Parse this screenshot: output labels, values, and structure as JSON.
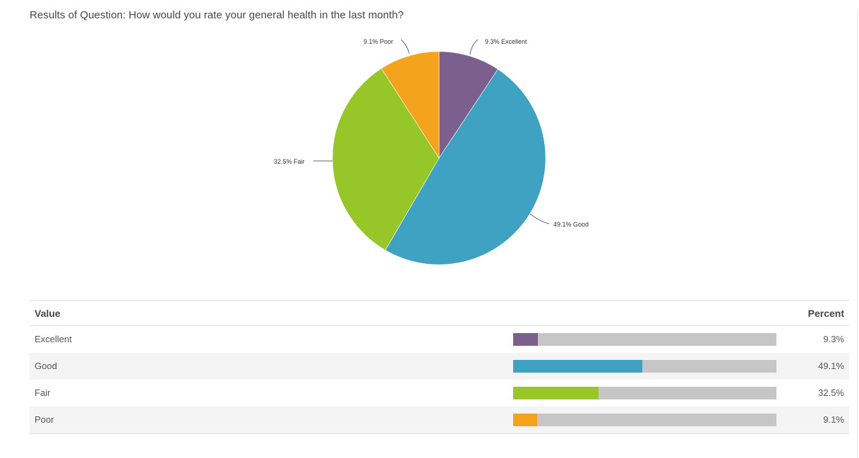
{
  "title": "Results of Question: How would you rate your general health in the last month?",
  "table": {
    "headers": {
      "value": "Value",
      "percent": "Percent"
    },
    "rows": [
      {
        "label": "Excellent",
        "percent": "9.3%",
        "value": 9.3,
        "color": "#7b5f8c"
      },
      {
        "label": "Good",
        "percent": "49.1%",
        "value": 49.1,
        "color": "#3fa2c2"
      },
      {
        "label": "Fair",
        "percent": "32.5%",
        "value": 32.5,
        "color": "#96c627"
      },
      {
        "label": "Poor",
        "percent": "9.1%",
        "value": 9.1,
        "color": "#f4a41c"
      }
    ]
  },
  "pie_labels": {
    "excellent": "9.3% Excellent",
    "good": "49.1% Good",
    "fair": "32.5% Fair",
    "poor": "9.1% Poor"
  },
  "chart_data": [
    {
      "type": "pie",
      "title": "Results of Question: How would you rate your general health in the last month?",
      "categories": [
        "Excellent",
        "Good",
        "Fair",
        "Poor"
      ],
      "values": [
        9.3,
        49.1,
        32.5,
        9.1
      ],
      "colors": [
        "#7b5f8c",
        "#3fa2c2",
        "#96c627",
        "#f4a41c"
      ],
      "labels": [
        "9.3% Excellent",
        "49.1% Good",
        "32.5% Fair",
        "9.1% Poor"
      ],
      "start_angle": "12 o'clock, clockwise",
      "legend": "none (callout labels)"
    },
    {
      "type": "table",
      "columns": [
        "Value",
        "Percent"
      ],
      "rows": [
        [
          "Excellent",
          "9.3%"
        ],
        [
          "Good",
          "49.1%"
        ],
        [
          "Fair",
          "32.5%"
        ],
        [
          "Poor",
          "9.1%"
        ]
      ],
      "bar_max": 100
    }
  ]
}
